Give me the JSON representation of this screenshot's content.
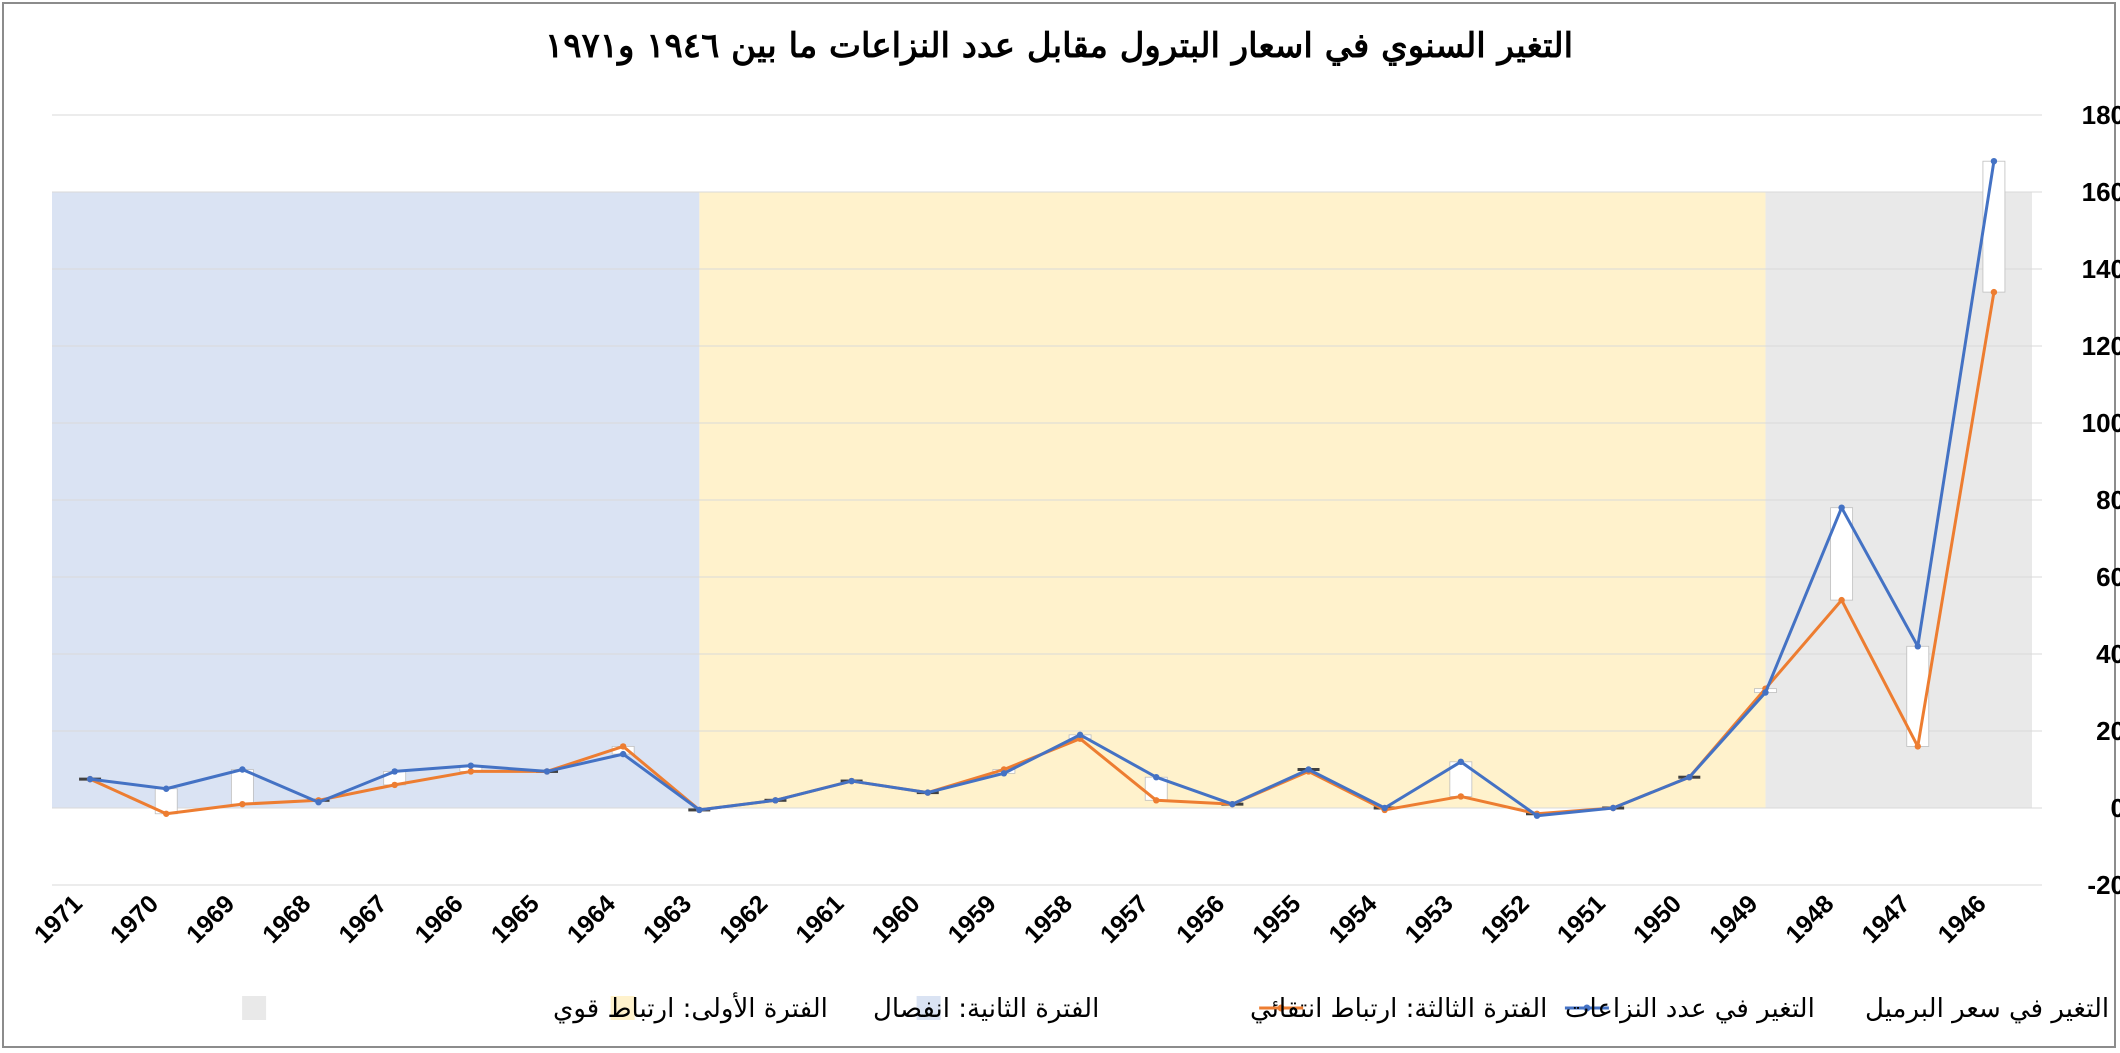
{
  "chart_data": {
    "type": "line",
    "title": "التغير السنوي في اسعار البترول مقابل عدد النزاعات ما بين ١٩٤٦ و١٩٧١",
    "x": [
      "1946",
      "1947",
      "1948",
      "1949",
      "1950",
      "1951",
      "1952",
      "1953",
      "1954",
      "1955",
      "1956",
      "1957",
      "1958",
      "1959",
      "1960",
      "1961",
      "1962",
      "1963",
      "1964",
      "1965",
      "1966",
      "1967",
      "1968",
      "1969",
      "1970",
      "1971"
    ],
    "x_reversed": true,
    "series": [
      {
        "name": "التغير في سعر البرميل",
        "color": "#4472C4",
        "values": [
          168,
          42,
          78,
          30,
          8,
          0,
          -2,
          12,
          0,
          10,
          1,
          8,
          19,
          9,
          4,
          7,
          2,
          -0.5,
          14,
          9.5,
          11,
          9.5,
          1.5,
          10,
          5,
          7.5
        ]
      },
      {
        "name": "التغير في عدد النزاعات",
        "color": "#ED7D31",
        "values": [
          134,
          16,
          54,
          31,
          8,
          0,
          -1.5,
          3,
          -0.5,
          9.5,
          1,
          2,
          18,
          10,
          4,
          7,
          2,
          -0.5,
          16,
          9.5,
          9.5,
          6,
          2,
          1,
          -1.5,
          7.5
        ]
      }
    ],
    "ylim": [
      -20,
      180
    ],
    "yticks": [
      "-20",
      "0",
      "20",
      "40",
      "60",
      "80",
      "100",
      "120",
      "140",
      "160",
      "180"
    ],
    "grid": true,
    "legend_position": "bottom",
    "bands": [
      {
        "name": "الفترة الأولى: ارتباط قوي",
        "color": "#E9E9E9",
        "from": "1946",
        "to": "1949",
        "top": 160
      },
      {
        "name": "الفترة الثانية: انفصال",
        "color": "#FFF2CC",
        "from": "1949",
        "to": "1963",
        "top": 160
      },
      {
        "name": "الفترة الثالثة: ارتباط انتقائي",
        "color": "#DAE3F3",
        "from": "1963",
        "to": "1971",
        "top": 160
      }
    ],
    "legend": [
      {
        "label": "التغير في سعر البرميل",
        "kind": "line",
        "color": "#4472C4"
      },
      {
        "label": "التغير في عدد النزاعات",
        "kind": "line",
        "color": "#ED7D31"
      },
      {
        "label": "الفترة الثالثة: ارتباط انتقائي",
        "kind": "box",
        "color": "#DAE3F3"
      },
      {
        "label": "الفترة الثانية: انفصال",
        "kind": "box",
        "color": "#FFF2CC"
      },
      {
        "label": "الفترة الأولى: ارتباط قوي",
        "kind": "box",
        "color": "#E9E9E9"
      }
    ]
  }
}
